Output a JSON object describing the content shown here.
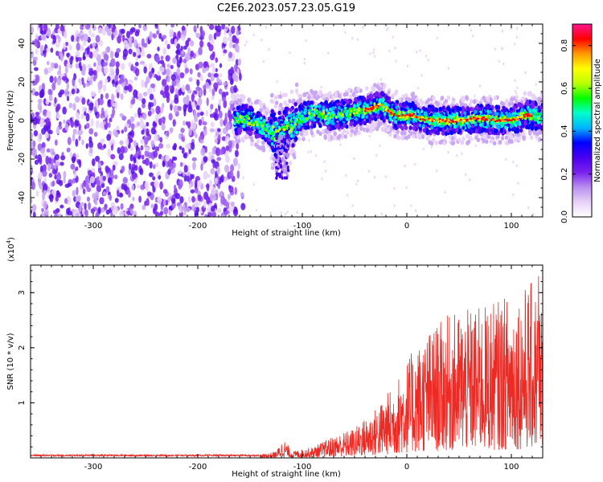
{
  "title": "C2E6.2023.057.23.05.G19",
  "colors": {
    "snr_line": "#ee2a24",
    "colorscale": [
      "#ffffff",
      "#e8d2f8",
      "#b98ff0",
      "#7a22ee",
      "#4a00f0",
      "#0000ff",
      "#00b4ff",
      "#00ffcc",
      "#00ff00",
      "#bbff00",
      "#ffff00",
      "#ff9900",
      "#ff0000",
      "#ff1493"
    ]
  },
  "chart_data": [
    {
      "type": "heatmap",
      "xlabel": "Height of straight line (km)",
      "ylabel": "Frequency (Hz)",
      "xlim": [
        -360,
        130
      ],
      "ylim": [
        -50,
        50
      ],
      "xticks": [
        -300,
        -200,
        -100,
        0,
        100
      ],
      "yticks": [
        -40,
        -20,
        0,
        20,
        40
      ],
      "colorbar": {
        "label": "Normalized spectral amplitude",
        "range": [
          0,
          0.9
        ],
        "ticks": [
          0.0,
          0.2,
          0.4,
          0.6,
          0.8
        ]
      },
      "description_trace": {
        "x": [
          -165,
          -155,
          -145,
          -135,
          -125,
          -115,
          -105,
          -95,
          -85,
          -75,
          -65,
          -55,
          -45,
          -35,
          -25,
          -15,
          -5,
          5,
          15,
          25,
          35,
          45,
          55,
          65,
          75,
          85,
          95,
          105,
          115,
          125
        ],
        "y": [
          0,
          1,
          -1,
          -4,
          -7,
          -5,
          0,
          3,
          4,
          2,
          3,
          4,
          5,
          6,
          8,
          4,
          2,
          3,
          1,
          0,
          0,
          0,
          0,
          1,
          1,
          0,
          0,
          1,
          3,
          2
        ]
      },
      "noise_region_x": [
        -360,
        -160
      ]
    },
    {
      "type": "line",
      "xlabel": "Height of straight line (km)",
      "ylabel": "SNR (10 * v/v)",
      "yscale_label": "(x10^4)",
      "xlim": [
        -360,
        130
      ],
      "ylim": [
        0,
        3.5
      ],
      "xticks": [
        -300,
        -200,
        -100,
        0,
        100
      ],
      "yticks": [
        1,
        2,
        3
      ],
      "series": [
        {
          "envelope_x": [
            -360,
            -140,
            -125,
            -118,
            -110,
            -90,
            -70,
            -50,
            -30,
            -10,
            0,
            20,
            40,
            60,
            80,
            100,
            120,
            130
          ],
          "envelope_y": [
            0.05,
            0.06,
            0.12,
            0.35,
            0.12,
            0.2,
            0.4,
            0.55,
            0.9,
            1.4,
            1.8,
            2.3,
            2.6,
            2.7,
            2.8,
            3.0,
            3.2,
            2.9
          ],
          "peak": {
            "x": 126,
            "y": 3.3
          }
        }
      ]
    }
  ]
}
